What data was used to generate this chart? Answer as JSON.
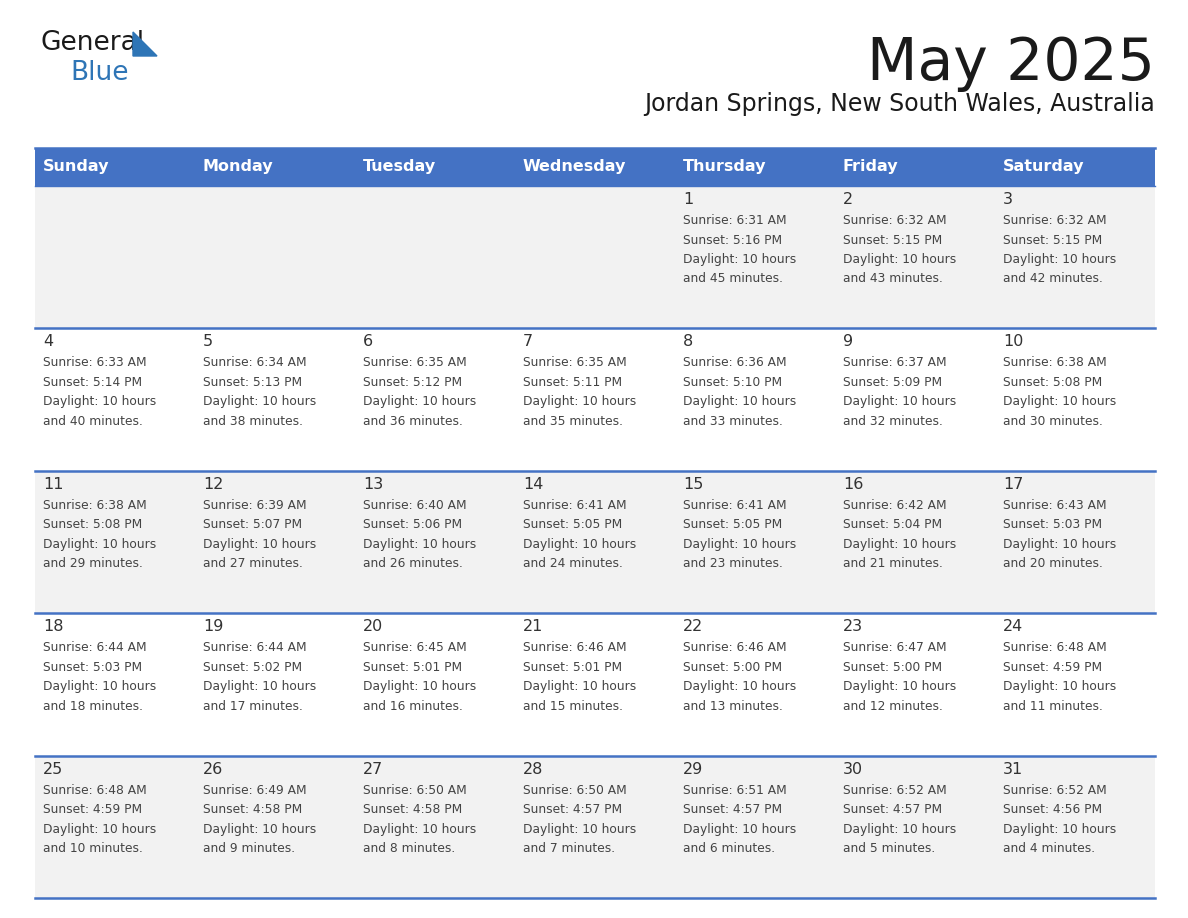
{
  "title": "May 2025",
  "subtitle": "Jordan Springs, New South Wales, Australia",
  "header_bg_color": "#4472C4",
  "header_text_color": "#FFFFFF",
  "day_names": [
    "Sunday",
    "Monday",
    "Tuesday",
    "Wednesday",
    "Thursday",
    "Friday",
    "Saturday"
  ],
  "row_bg_even": "#F2F2F2",
  "row_bg_odd": "#FFFFFF",
  "cell_border_color": "#4472C4",
  "day_number_color": "#333333",
  "cell_text_color": "#444444",
  "days": [
    {
      "day": 1,
      "col": 4,
      "row": 0,
      "sunrise": "6:31 AM",
      "sunset": "5:16 PM",
      "daylight_hours": 10,
      "daylight_minutes": 45
    },
    {
      "day": 2,
      "col": 5,
      "row": 0,
      "sunrise": "6:32 AM",
      "sunset": "5:15 PM",
      "daylight_hours": 10,
      "daylight_minutes": 43
    },
    {
      "day": 3,
      "col": 6,
      "row": 0,
      "sunrise": "6:32 AM",
      "sunset": "5:15 PM",
      "daylight_hours": 10,
      "daylight_minutes": 42
    },
    {
      "day": 4,
      "col": 0,
      "row": 1,
      "sunrise": "6:33 AM",
      "sunset": "5:14 PM",
      "daylight_hours": 10,
      "daylight_minutes": 40
    },
    {
      "day": 5,
      "col": 1,
      "row": 1,
      "sunrise": "6:34 AM",
      "sunset": "5:13 PM",
      "daylight_hours": 10,
      "daylight_minutes": 38
    },
    {
      "day": 6,
      "col": 2,
      "row": 1,
      "sunrise": "6:35 AM",
      "sunset": "5:12 PM",
      "daylight_hours": 10,
      "daylight_minutes": 36
    },
    {
      "day": 7,
      "col": 3,
      "row": 1,
      "sunrise": "6:35 AM",
      "sunset": "5:11 PM",
      "daylight_hours": 10,
      "daylight_minutes": 35
    },
    {
      "day": 8,
      "col": 4,
      "row": 1,
      "sunrise": "6:36 AM",
      "sunset": "5:10 PM",
      "daylight_hours": 10,
      "daylight_minutes": 33
    },
    {
      "day": 9,
      "col": 5,
      "row": 1,
      "sunrise": "6:37 AM",
      "sunset": "5:09 PM",
      "daylight_hours": 10,
      "daylight_minutes": 32
    },
    {
      "day": 10,
      "col": 6,
      "row": 1,
      "sunrise": "6:38 AM",
      "sunset": "5:08 PM",
      "daylight_hours": 10,
      "daylight_minutes": 30
    },
    {
      "day": 11,
      "col": 0,
      "row": 2,
      "sunrise": "6:38 AM",
      "sunset": "5:08 PM",
      "daylight_hours": 10,
      "daylight_minutes": 29
    },
    {
      "day": 12,
      "col": 1,
      "row": 2,
      "sunrise": "6:39 AM",
      "sunset": "5:07 PM",
      "daylight_hours": 10,
      "daylight_minutes": 27
    },
    {
      "day": 13,
      "col": 2,
      "row": 2,
      "sunrise": "6:40 AM",
      "sunset": "5:06 PM",
      "daylight_hours": 10,
      "daylight_minutes": 26
    },
    {
      "day": 14,
      "col": 3,
      "row": 2,
      "sunrise": "6:41 AM",
      "sunset": "5:05 PM",
      "daylight_hours": 10,
      "daylight_minutes": 24
    },
    {
      "day": 15,
      "col": 4,
      "row": 2,
      "sunrise": "6:41 AM",
      "sunset": "5:05 PM",
      "daylight_hours": 10,
      "daylight_minutes": 23
    },
    {
      "day": 16,
      "col": 5,
      "row": 2,
      "sunrise": "6:42 AM",
      "sunset": "5:04 PM",
      "daylight_hours": 10,
      "daylight_minutes": 21
    },
    {
      "day": 17,
      "col": 6,
      "row": 2,
      "sunrise": "6:43 AM",
      "sunset": "5:03 PM",
      "daylight_hours": 10,
      "daylight_minutes": 20
    },
    {
      "day": 18,
      "col": 0,
      "row": 3,
      "sunrise": "6:44 AM",
      "sunset": "5:03 PM",
      "daylight_hours": 10,
      "daylight_minutes": 18
    },
    {
      "day": 19,
      "col": 1,
      "row": 3,
      "sunrise": "6:44 AM",
      "sunset": "5:02 PM",
      "daylight_hours": 10,
      "daylight_minutes": 17
    },
    {
      "day": 20,
      "col": 2,
      "row": 3,
      "sunrise": "6:45 AM",
      "sunset": "5:01 PM",
      "daylight_hours": 10,
      "daylight_minutes": 16
    },
    {
      "day": 21,
      "col": 3,
      "row": 3,
      "sunrise": "6:46 AM",
      "sunset": "5:01 PM",
      "daylight_hours": 10,
      "daylight_minutes": 15
    },
    {
      "day": 22,
      "col": 4,
      "row": 3,
      "sunrise": "6:46 AM",
      "sunset": "5:00 PM",
      "daylight_hours": 10,
      "daylight_minutes": 13
    },
    {
      "day": 23,
      "col": 5,
      "row": 3,
      "sunrise": "6:47 AM",
      "sunset": "5:00 PM",
      "daylight_hours": 10,
      "daylight_minutes": 12
    },
    {
      "day": 24,
      "col": 6,
      "row": 3,
      "sunrise": "6:48 AM",
      "sunset": "4:59 PM",
      "daylight_hours": 10,
      "daylight_minutes": 11
    },
    {
      "day": 25,
      "col": 0,
      "row": 4,
      "sunrise": "6:48 AM",
      "sunset": "4:59 PM",
      "daylight_hours": 10,
      "daylight_minutes": 10
    },
    {
      "day": 26,
      "col": 1,
      "row": 4,
      "sunrise": "6:49 AM",
      "sunset": "4:58 PM",
      "daylight_hours": 10,
      "daylight_minutes": 9
    },
    {
      "day": 27,
      "col": 2,
      "row": 4,
      "sunrise": "6:50 AM",
      "sunset": "4:58 PM",
      "daylight_hours": 10,
      "daylight_minutes": 8
    },
    {
      "day": 28,
      "col": 3,
      "row": 4,
      "sunrise": "6:50 AM",
      "sunset": "4:57 PM",
      "daylight_hours": 10,
      "daylight_minutes": 7
    },
    {
      "day": 29,
      "col": 4,
      "row": 4,
      "sunrise": "6:51 AM",
      "sunset": "4:57 PM",
      "daylight_hours": 10,
      "daylight_minutes": 6
    },
    {
      "day": 30,
      "col": 5,
      "row": 4,
      "sunrise": "6:52 AM",
      "sunset": "4:57 PM",
      "daylight_hours": 10,
      "daylight_minutes": 5
    },
    {
      "day": 31,
      "col": 6,
      "row": 4,
      "sunrise": "6:52 AM",
      "sunset": "4:56 PM",
      "daylight_hours": 10,
      "daylight_minutes": 4
    }
  ],
  "num_rows": 5,
  "num_cols": 7,
  "logo_general_color": "#1a1a1a",
  "logo_blue_color": "#2e75b6",
  "triangle_color": "#2e75b6"
}
